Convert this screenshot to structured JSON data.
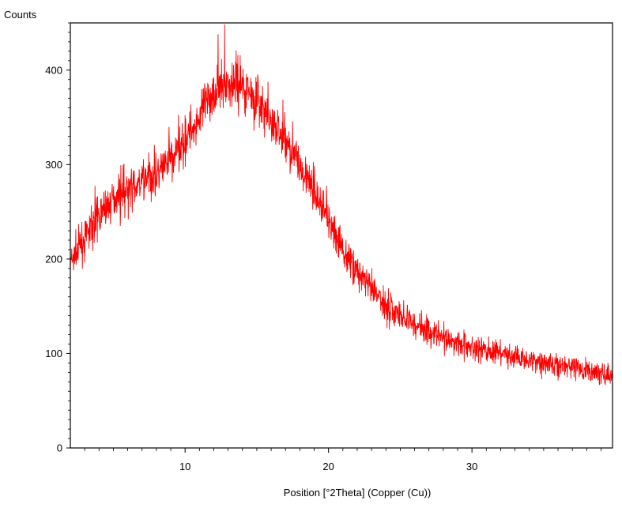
{
  "chart_data": {
    "type": "line",
    "title": "",
    "ylabel": "Counts",
    "xlabel": "Position [°2Theta] (Copper (Cu))",
    "xlim": [
      2,
      39.8
    ],
    "ylim": [
      0,
      450
    ],
    "x_major_ticks": [
      10,
      20,
      30
    ],
    "x_tick_labels": [
      "10",
      "20",
      "30"
    ],
    "y_major_ticks": [
      0,
      100,
      200,
      300,
      400
    ],
    "y_tick_labels": [
      "0",
      "100",
      "200",
      "300",
      "400"
    ],
    "grid": false,
    "legend": "none",
    "line_color": "#ff0000",
    "series": [
      {
        "x": [
          2,
          3,
          4,
          5,
          6,
          7,
          8,
          9,
          10,
          11,
          12,
          13,
          14,
          15,
          16,
          17,
          18,
          19,
          20,
          21,
          22,
          23,
          24,
          25,
          26,
          27,
          28,
          29,
          30,
          31,
          32,
          33,
          34,
          35,
          36,
          37,
          38,
          39,
          39.8
        ],
        "values": [
          195,
          222,
          248,
          265,
          272,
          280,
          290,
          305,
          325,
          350,
          378,
          388,
          385,
          368,
          345,
          325,
          300,
          270,
          240,
          210,
          188,
          168,
          152,
          140,
          132,
          124,
          118,
          112,
          107,
          103,
          100,
          97,
          94,
          91,
          88,
          85,
          82,
          79,
          76
        ],
        "peak": {
          "x": 12.3,
          "value": 438
        },
        "noise_amplitude": 15
      }
    ]
  }
}
